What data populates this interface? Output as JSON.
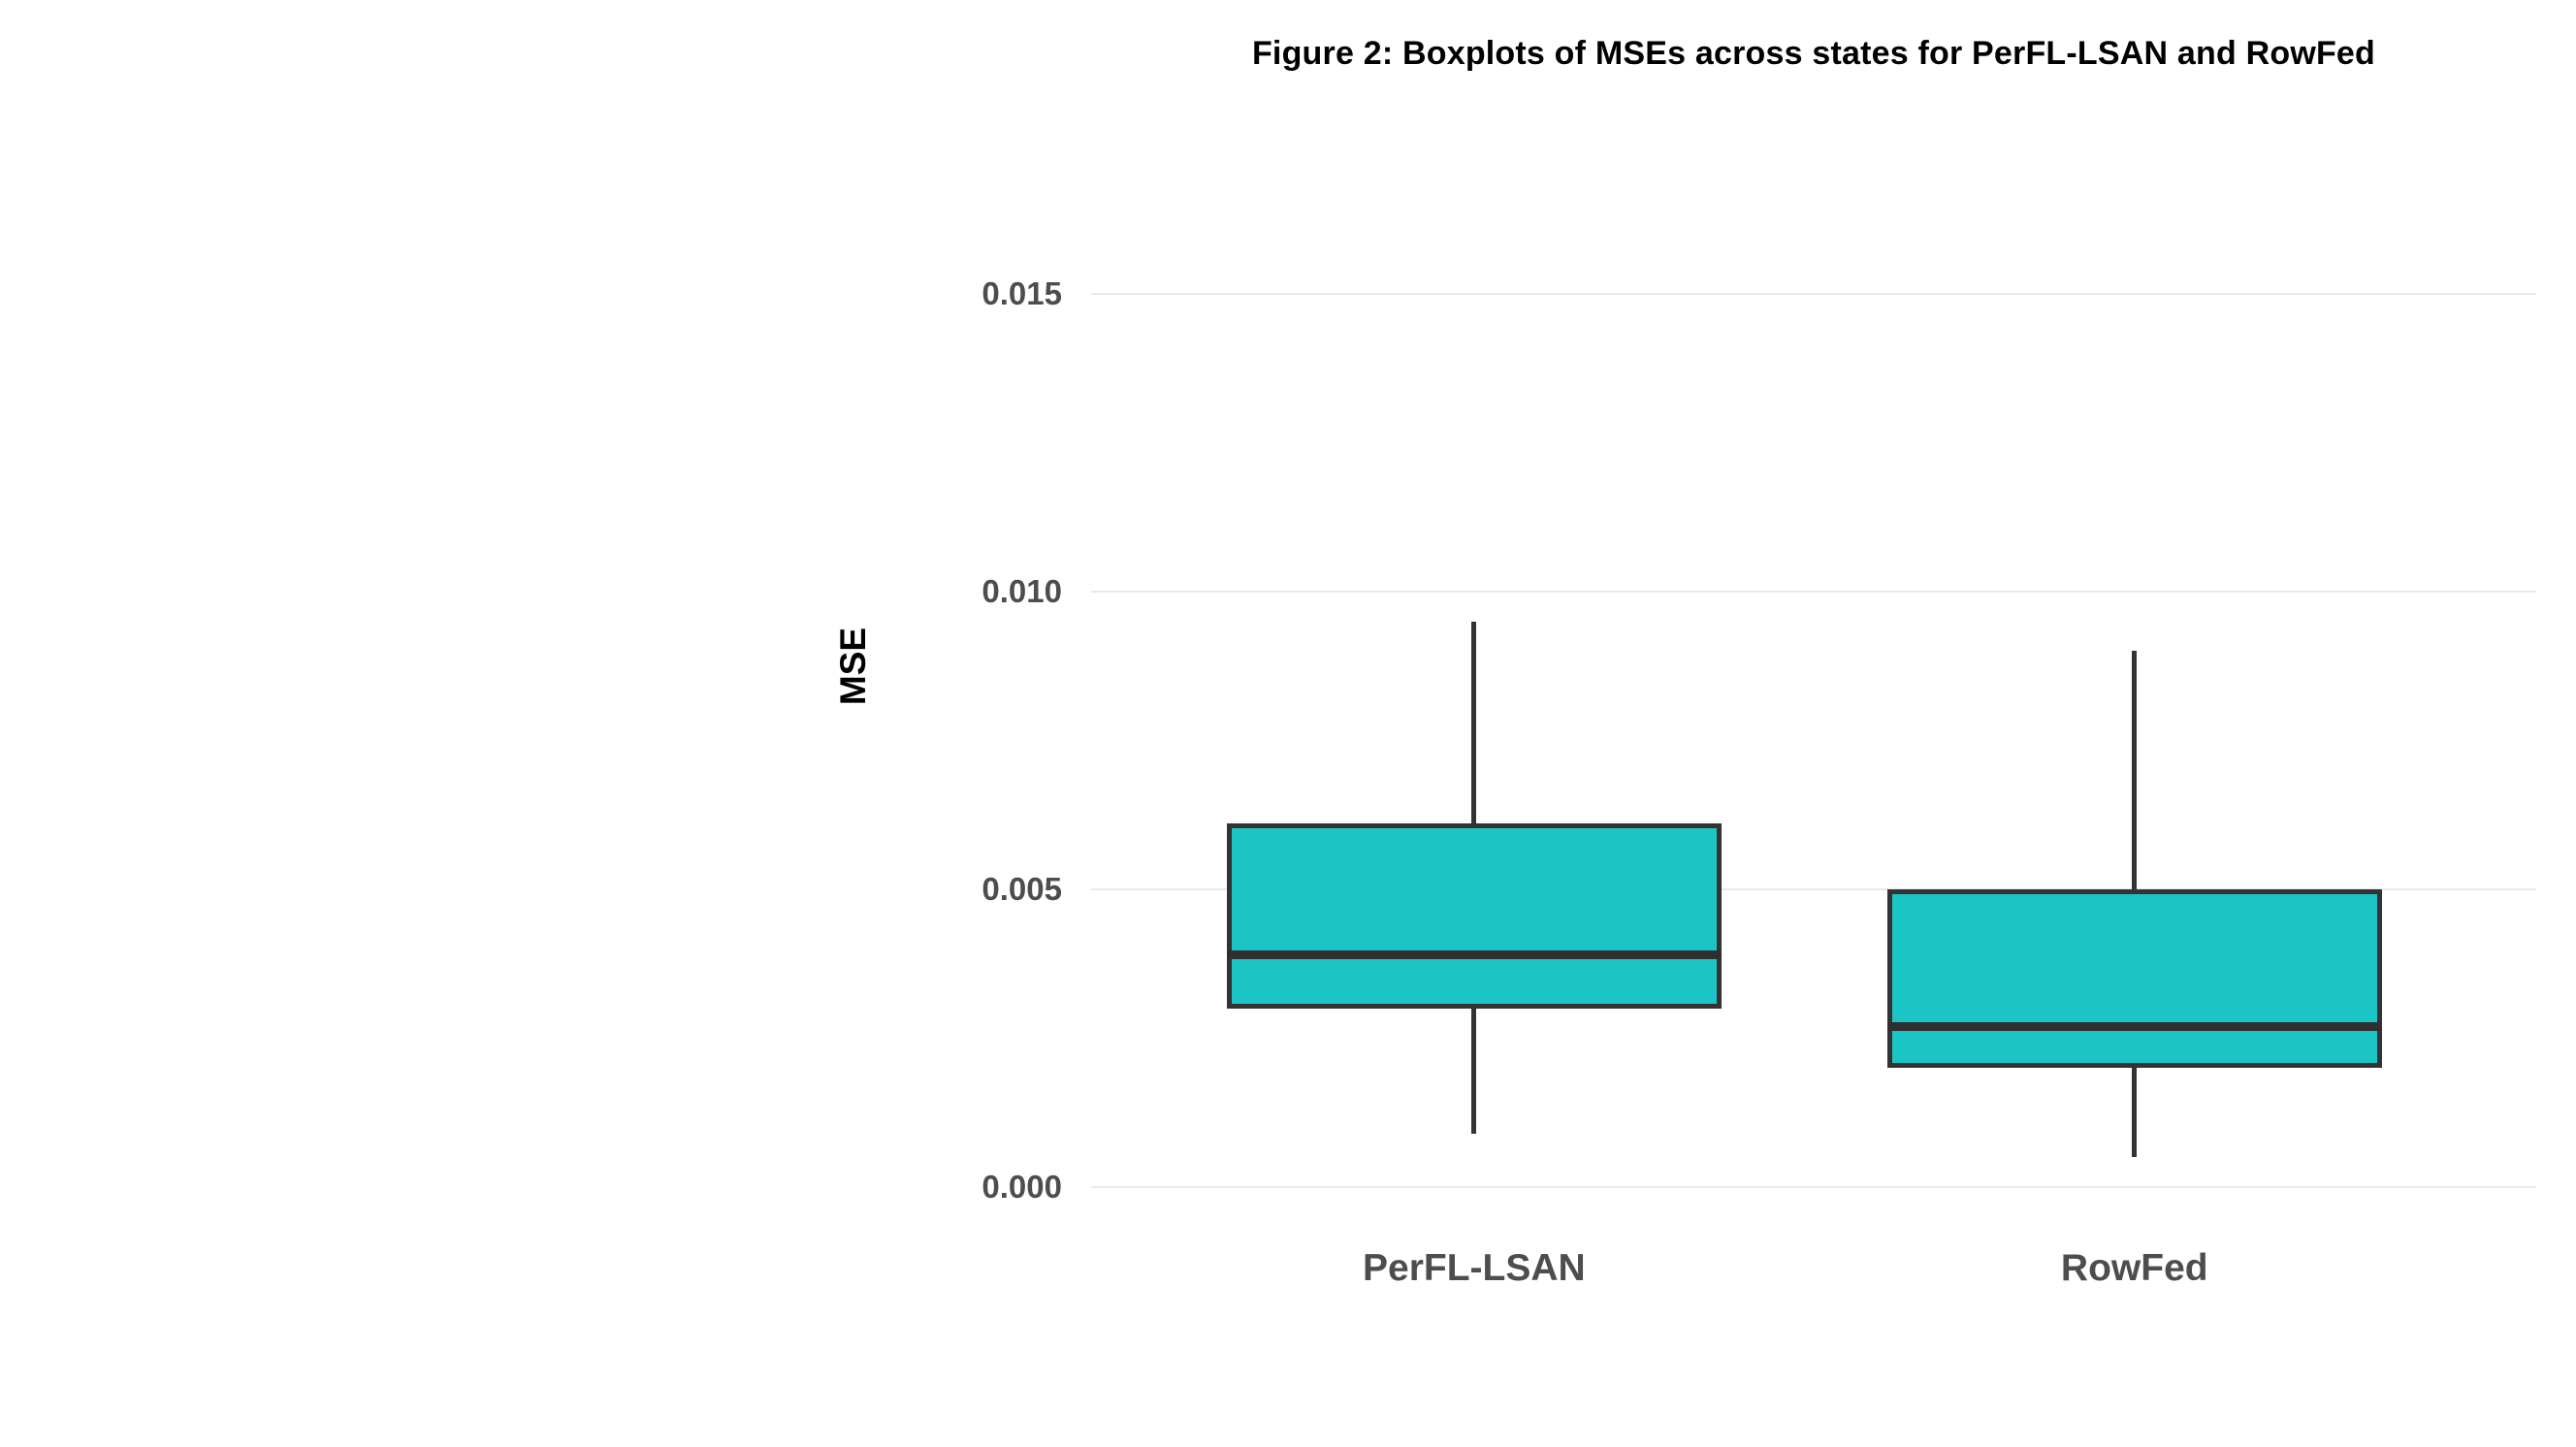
{
  "chart_data": {
    "type": "boxplot",
    "title": "Figure 2: Boxplots of MSEs across states for PerFL-LSAN and RowFed",
    "ylabel": "MSE",
    "xlabel": "",
    "categories": [
      "PerFL-LSAN",
      "RowFed"
    ],
    "series": [
      {
        "name": "PerFL-LSAN",
        "min": 0.0009,
        "q1": 0.003,
        "median": 0.0039,
        "q3": 0.0061,
        "max": 0.0095
      },
      {
        "name": "RowFed",
        "min": 0.0005,
        "q1": 0.002,
        "median": 0.0027,
        "q3": 0.005,
        "max": 0.009
      }
    ],
    "yticks": [
      0.0,
      0.005,
      0.01,
      0.015
    ],
    "ytick_labels": [
      "0.000",
      "0.005",
      "0.010",
      "0.015"
    ],
    "ylim": [
      0,
      0.0165
    ],
    "grid": true,
    "legend": "none",
    "box_fill": "#1cc5c5",
    "box_stroke": "#333333",
    "box_centers": [
      0.265,
      0.722
    ],
    "box_width_frac": 0.342
  }
}
